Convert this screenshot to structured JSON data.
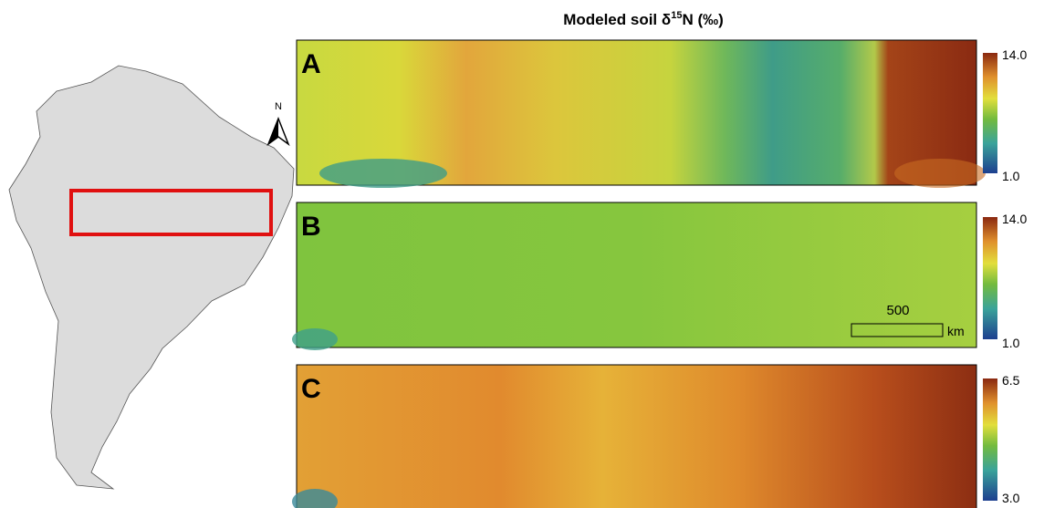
{
  "title": {
    "prefix": "Modeled soil δ",
    "superscript": "15",
    "suffix": "N (‰)"
  },
  "north_label": "N",
  "panels": [
    {
      "label": "A",
      "colorbar_max": "14.0",
      "colorbar_min": "1.0"
    },
    {
      "label": "B",
      "colorbar_max": "14.0",
      "colorbar_min": "1.0"
    },
    {
      "label": "C",
      "colorbar_max": "6.5",
      "colorbar_min": "3.0"
    }
  ],
  "scale_bar": {
    "length": "500",
    "unit": "km"
  }
}
